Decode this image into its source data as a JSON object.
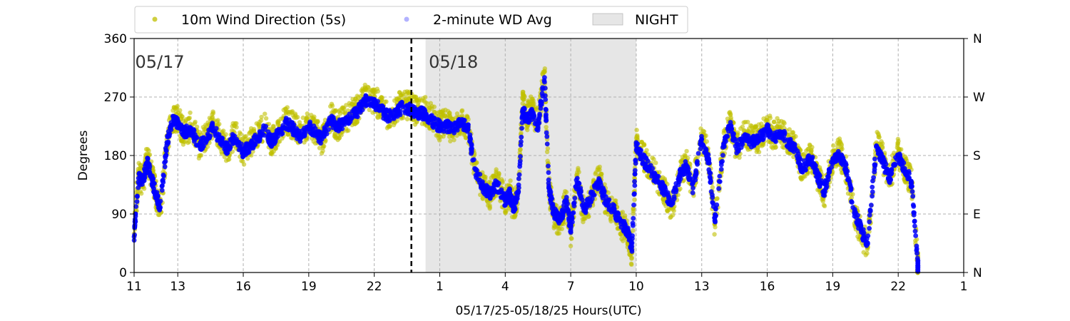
{
  "chart_data": {
    "type": "scatter",
    "xlabel": "05/17/25-05/18/25  Hours(UTC)",
    "ylabel": "Degrees",
    "x_range_hours": [
      11,
      49
    ],
    "ylim": [
      0,
      360
    ],
    "x_ticks": [
      {
        "hour": 11,
        "label": "11"
      },
      {
        "hour": 13,
        "label": "13"
      },
      {
        "hour": 16,
        "label": "16"
      },
      {
        "hour": 19,
        "label": "19"
      },
      {
        "hour": 22,
        "label": "22"
      },
      {
        "hour": 25,
        "label": "1"
      },
      {
        "hour": 28,
        "label": "4"
      },
      {
        "hour": 31,
        "label": "7"
      },
      {
        "hour": 34,
        "label": "10"
      },
      {
        "hour": 37,
        "label": "13"
      },
      {
        "hour": 40,
        "label": "16"
      },
      {
        "hour": 43,
        "label": "19"
      },
      {
        "hour": 46,
        "label": "22"
      },
      {
        "hour": 49,
        "label": "1"
      }
    ],
    "y_ticks": [
      0,
      90,
      180,
      270,
      360
    ],
    "y2_ticks": [
      {
        "value": 0,
        "label": "N"
      },
      {
        "value": 90,
        "label": "E"
      },
      {
        "value": 180,
        "label": "S"
      },
      {
        "value": 270,
        "label": "W"
      },
      {
        "value": 360,
        "label": "N"
      }
    ],
    "grid": true,
    "legend_placement": "top",
    "legend": [
      {
        "label": "10m Wind Direction (5s)",
        "color": "#bfbf00"
      },
      {
        "label": "2-minute WD Avg",
        "color": "#0000ff"
      },
      {
        "label": "NIGHT",
        "color": "#e6e6e6"
      }
    ],
    "night_span_hours": [
      24.35,
      34.0
    ],
    "day_divider_hour": 23.7,
    "day_labels": [
      {
        "hour": 11.05,
        "label": "05/17"
      },
      {
        "hour": 24.5,
        "label": "05/18"
      }
    ],
    "series": [
      {
        "name": "10m Wind Direction (5s)",
        "color": "#bfbf00",
        "x": [
          11.0,
          11.2,
          11.4,
          11.6,
          11.8,
          12.0,
          12.2,
          12.5,
          12.8,
          13.0,
          13.3,
          13.6,
          14.0,
          14.3,
          14.6,
          15.0,
          15.3,
          15.6,
          16.0,
          16.3,
          16.6,
          17.0,
          17.3,
          17.6,
          18.0,
          18.3,
          18.6,
          19.0,
          19.3,
          19.6,
          20.0,
          20.3,
          20.6,
          21.0,
          21.3,
          21.6,
          22.0,
          22.3,
          22.6,
          23.0,
          23.3,
          23.7,
          24.0,
          24.3,
          24.6,
          25.0,
          25.3,
          25.6,
          26.0,
          26.3,
          26.6,
          27.0,
          27.3,
          27.6,
          28.0,
          28.2,
          28.4,
          28.6,
          28.8,
          29.0,
          29.2,
          29.5,
          29.8,
          30.0,
          30.2,
          30.5,
          30.8,
          31.0,
          31.3,
          31.6,
          32.0,
          32.3,
          32.6,
          33.0,
          33.3,
          33.6,
          33.8,
          34.0,
          34.3,
          34.6,
          35.0,
          35.3,
          35.6,
          36.0,
          36.3,
          36.6,
          37.0,
          37.3,
          37.6,
          38.0,
          38.3,
          38.6,
          39.0,
          39.3,
          39.6,
          40.0,
          40.3,
          40.6,
          41.0,
          41.3,
          41.6,
          42.0,
          42.3,
          42.6,
          43.0,
          43.3,
          43.6,
          44.0,
          44.3,
          44.6,
          45.0,
          45.3,
          45.6,
          46.0,
          46.3,
          46.6,
          46.9
        ],
        "y": [
          60,
          150,
          140,
          175,
          150,
          120,
          95,
          200,
          240,
          235,
          215,
          225,
          195,
          210,
          230,
          205,
          190,
          215,
          185,
          200,
          210,
          225,
          200,
          220,
          235,
          225,
          215,
          230,
          220,
          205,
          240,
          225,
          235,
          245,
          255,
          270,
          265,
          255,
          240,
          250,
          260,
          255,
          245,
          250,
          240,
          225,
          230,
          220,
          235,
          220,
          160,
          130,
          120,
          140,
          110,
          125,
          95,
          130,
          260,
          240,
          250,
          230,
          310,
          130,
          90,
          75,
          110,
          60,
          150,
          90,
          120,
          145,
          110,
          95,
          75,
          60,
          30,
          200,
          180,
          165,
          140,
          125,
          100,
          150,
          170,
          130,
          210,
          180,
          75,
          200,
          230,
          190,
          215,
          205,
          205,
          225,
          210,
          220,
          200,
          190,
          160,
          180,
          150,
          120,
          175,
          185,
          160,
          90,
          60,
          40,
          200,
          175,
          145,
          185,
          160,
          140,
          10
        ]
      },
      {
        "name": "2-minute WD Avg",
        "color": "#0000ff",
        "x": [
          11.0,
          11.2,
          11.4,
          11.6,
          11.8,
          12.0,
          12.2,
          12.5,
          12.8,
          13.0,
          13.3,
          13.6,
          14.0,
          14.3,
          14.6,
          15.0,
          15.3,
          15.6,
          16.0,
          16.3,
          16.6,
          17.0,
          17.3,
          17.6,
          18.0,
          18.3,
          18.6,
          19.0,
          19.3,
          19.6,
          20.0,
          20.3,
          20.6,
          21.0,
          21.3,
          21.6,
          22.0,
          22.3,
          22.6,
          23.0,
          23.3,
          23.7,
          24.0,
          24.3,
          24.6,
          25.0,
          25.3,
          25.6,
          26.0,
          26.3,
          26.6,
          27.0,
          27.3,
          27.6,
          28.0,
          28.2,
          28.4,
          28.6,
          28.8,
          29.0,
          29.2,
          29.5,
          29.8,
          30.0,
          30.2,
          30.5,
          30.8,
          31.0,
          31.3,
          31.6,
          32.0,
          32.3,
          32.6,
          33.0,
          33.3,
          33.6,
          33.8,
          34.0,
          34.3,
          34.6,
          35.0,
          35.3,
          35.6,
          36.0,
          36.3,
          36.6,
          37.0,
          37.3,
          37.6,
          38.0,
          38.3,
          38.6,
          39.0,
          39.3,
          39.6,
          40.0,
          40.3,
          40.6,
          41.0,
          41.3,
          41.6,
          42.0,
          42.3,
          42.6,
          43.0,
          43.3,
          43.6,
          44.0,
          44.3,
          44.6,
          45.0,
          45.3,
          45.6,
          46.0,
          46.3,
          46.6,
          46.9
        ],
        "y": [
          55,
          145,
          140,
          170,
          145,
          120,
          100,
          200,
          235,
          230,
          215,
          220,
          195,
          205,
          225,
          200,
          190,
          210,
          185,
          195,
          205,
          220,
          200,
          215,
          230,
          220,
          210,
          225,
          215,
          205,
          235,
          225,
          230,
          240,
          250,
          265,
          260,
          250,
          240,
          245,
          255,
          250,
          245,
          245,
          235,
          225,
          225,
          220,
          230,
          220,
          160,
          130,
          120,
          135,
          110,
          120,
          100,
          125,
          250,
          235,
          245,
          225,
          300,
          130,
          95,
          80,
          110,
          65,
          145,
          95,
          120,
          140,
          110,
          95,
          75,
          65,
          35,
          195,
          175,
          160,
          140,
          125,
          105,
          150,
          165,
          130,
          205,
          175,
          80,
          195,
          225,
          190,
          210,
          200,
          205,
          220,
          205,
          215,
          200,
          190,
          160,
          175,
          150,
          125,
          170,
          180,
          160,
          95,
          65,
          45,
          195,
          170,
          145,
          180,
          160,
          140,
          10
        ]
      }
    ]
  }
}
